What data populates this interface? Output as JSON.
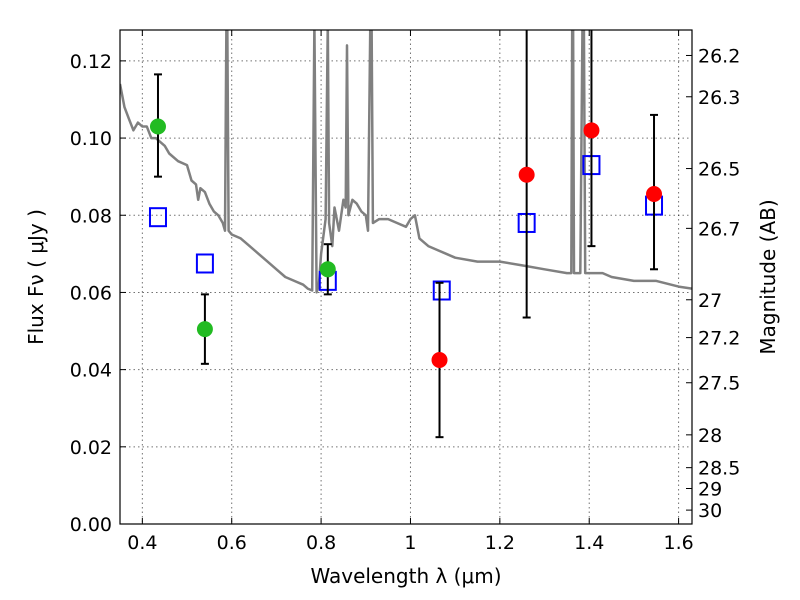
{
  "chart_data": {
    "type": "scatter",
    "xlabel": "Wavelength  λ (μm)",
    "ylabel_left": "Flux  Fν  ( μJy )",
    "ylabel_right": "Magnitude (AB)",
    "xlim": [
      0.35,
      1.63
    ],
    "ylim": [
      0.0,
      0.128
    ],
    "x_ticks": [
      0.4,
      0.6,
      0.8,
      1.0,
      1.2,
      1.4,
      1.6
    ],
    "x_tick_labels": [
      "0.4",
      "0.6",
      "0.8",
      "1",
      "1.2",
      "1.4",
      "1.6"
    ],
    "y_ticks": [
      0.0,
      0.02,
      0.04,
      0.06,
      0.08,
      0.1,
      0.12
    ],
    "y_tick_labels": [
      "0.00",
      "0.02",
      "0.04",
      "0.06",
      "0.08",
      "0.10",
      "0.12"
    ],
    "right_ticks": [
      {
        "label": "26.2",
        "flux": 0.1214
      },
      {
        "label": "26.3",
        "flux": 0.1107
      },
      {
        "label": "26.5",
        "flux": 0.0921
      },
      {
        "label": "26.7",
        "flux": 0.0766
      },
      {
        "label": "27",
        "flux": 0.0581
      },
      {
        "label": "27.2",
        "flux": 0.0483
      },
      {
        "label": "27.5",
        "flux": 0.0366
      },
      {
        "label": "28",
        "flux": 0.0231
      },
      {
        "label": "28.5",
        "flux": 0.0146
      },
      {
        "label": "29",
        "flux": 0.0092
      },
      {
        "label": "30",
        "flux": 0.0036
      }
    ],
    "grid": true,
    "model_spectrum": {
      "color": "#808080",
      "points": [
        [
          0.35,
          0.114
        ],
        [
          0.36,
          0.108
        ],
        [
          0.37,
          0.105
        ],
        [
          0.38,
          0.102
        ],
        [
          0.39,
          0.104
        ],
        [
          0.4,
          0.103
        ],
        [
          0.41,
          0.103
        ],
        [
          0.42,
          0.1
        ],
        [
          0.43,
          0.1
        ],
        [
          0.44,
          0.099
        ],
        [
          0.45,
          0.098
        ],
        [
          0.46,
          0.096
        ],
        [
          0.48,
          0.094
        ],
        [
          0.5,
          0.093
        ],
        [
          0.51,
          0.089
        ],
        [
          0.52,
          0.088
        ],
        [
          0.525,
          0.084
        ],
        [
          0.53,
          0.087
        ],
        [
          0.54,
          0.086
        ],
        [
          0.55,
          0.083
        ],
        [
          0.56,
          0.081
        ],
        [
          0.57,
          0.08
        ],
        [
          0.58,
          0.078
        ],
        [
          0.585,
          0.076
        ],
        [
          0.588,
          0.13
        ],
        [
          0.59,
          0.13
        ],
        [
          0.593,
          0.076
        ],
        [
          0.6,
          0.075
        ],
        [
          0.62,
          0.074
        ],
        [
          0.64,
          0.072
        ],
        [
          0.66,
          0.07
        ],
        [
          0.68,
          0.068
        ],
        [
          0.7,
          0.066
        ],
        [
          0.72,
          0.064
        ],
        [
          0.74,
          0.063
        ],
        [
          0.76,
          0.062
        ],
        [
          0.77,
          0.061
        ],
        [
          0.78,
          0.0605
        ],
        [
          0.785,
          0.13
        ],
        [
          0.79,
          0.06
        ],
        [
          0.795,
          0.062
        ],
        [
          0.8,
          0.07
        ],
        [
          0.81,
          0.079
        ],
        [
          0.815,
          0.13
        ],
        [
          0.818,
          0.078
        ],
        [
          0.825,
          0.072
        ],
        [
          0.83,
          0.082
        ],
        [
          0.84,
          0.076
        ],
        [
          0.85,
          0.084
        ],
        [
          0.855,
          0.082
        ],
        [
          0.858,
          0.124
        ],
        [
          0.861,
          0.08
        ],
        [
          0.87,
          0.084
        ],
        [
          0.88,
          0.083
        ],
        [
          0.89,
          0.081
        ],
        [
          0.9,
          0.08
        ],
        [
          0.905,
          0.076
        ],
        [
          0.91,
          0.13
        ],
        [
          0.913,
          0.13
        ],
        [
          0.916,
          0.078
        ],
        [
          0.93,
          0.079
        ],
        [
          0.95,
          0.079
        ],
        [
          0.97,
          0.078
        ],
        [
          0.99,
          0.077
        ],
        [
          1.0,
          0.079
        ],
        [
          1.01,
          0.08
        ],
        [
          1.02,
          0.074
        ],
        [
          1.04,
          0.072
        ],
        [
          1.06,
          0.071
        ],
        [
          1.08,
          0.07
        ],
        [
          1.1,
          0.069
        ],
        [
          1.15,
          0.068
        ],
        [
          1.2,
          0.068
        ],
        [
          1.25,
          0.067
        ],
        [
          1.3,
          0.066
        ],
        [
          1.35,
          0.065
        ],
        [
          1.36,
          0.065
        ],
        [
          1.362,
          0.13
        ],
        [
          1.364,
          0.13
        ],
        [
          1.366,
          0.065
        ],
        [
          1.38,
          0.065
        ],
        [
          1.385,
          0.13
        ],
        [
          1.388,
          0.13
        ],
        [
          1.391,
          0.065
        ],
        [
          1.4,
          0.065
        ],
        [
          1.43,
          0.065
        ],
        [
          1.45,
          0.064
        ],
        [
          1.5,
          0.063
        ],
        [
          1.55,
          0.063
        ],
        [
          1.6,
          0.0615
        ],
        [
          1.63,
          0.061
        ]
      ]
    },
    "series": [
      {
        "marker": "open-square",
        "color": "#0000ff",
        "points": [
          {
            "x": 0.435,
            "y": 0.0795
          },
          {
            "x": 0.54,
            "y": 0.0675
          },
          {
            "x": 0.815,
            "y": 0.063
          },
          {
            "x": 1.07,
            "y": 0.0605
          },
          {
            "x": 1.26,
            "y": 0.078
          },
          {
            "x": 1.405,
            "y": 0.093
          },
          {
            "x": 1.545,
            "y": 0.0825
          }
        ]
      },
      {
        "marker": "filled-circle",
        "color": "#22bb22",
        "points": [
          {
            "x": 0.435,
            "y": 0.103,
            "yerr_low": 0.09,
            "yerr_high": 0.1165
          },
          {
            "x": 0.54,
            "y": 0.0505,
            "yerr_low": 0.0415,
            "yerr_high": 0.0595
          },
          {
            "x": 0.815,
            "y": 0.066,
            "yerr_low": 0.0595,
            "yerr_high": 0.0725
          }
        ]
      },
      {
        "marker": "filled-circle",
        "color": "#ff0000",
        "points": [
          {
            "x": 1.065,
            "y": 0.0425,
            "yerr_low": 0.0225,
            "yerr_high": 0.0625
          },
          {
            "x": 1.26,
            "y": 0.0905,
            "yerr_low": 0.0535,
            "yerr_high": 0.13
          },
          {
            "x": 1.405,
            "y": 0.102,
            "yerr_low": 0.072,
            "yerr_high": 0.13
          },
          {
            "x": 1.545,
            "y": 0.0855,
            "yerr_low": 0.066,
            "yerr_high": 0.106
          }
        ]
      }
    ]
  }
}
